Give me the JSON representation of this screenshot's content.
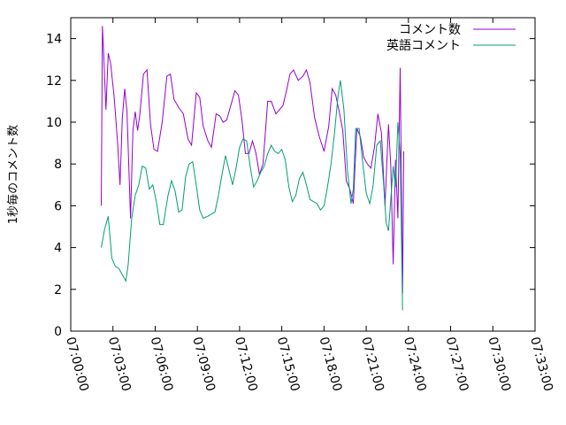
{
  "chart_data": {
    "type": "line",
    "ylabel": "1秒毎のコメント数",
    "xlabel": "",
    "title": "",
    "xlim": [
      "07:00:00",
      "07:33:00"
    ],
    "ylim": [
      0,
      15
    ],
    "x_ticks": [
      "07:00:00",
      "07:03:00",
      "07:06:00",
      "07:09:00",
      "07:12:00",
      "07:15:00",
      "07:18:00",
      "07:21:00",
      "07:24:00",
      "07:27:00",
      "07:30:00",
      "07:33:00"
    ],
    "y_ticks": [
      0,
      2,
      4,
      6,
      8,
      10,
      12,
      14
    ],
    "legend_position": "top-right",
    "grid": false,
    "series": [
      {
        "name": "コメント数",
        "color": "#9400d3",
        "points": [
          [
            "07:02:10",
            6.0
          ],
          [
            "07:02:15",
            14.6
          ],
          [
            "07:02:20",
            13.4
          ],
          [
            "07:02:30",
            10.6
          ],
          [
            "07:02:40",
            13.3
          ],
          [
            "07:02:50",
            12.8
          ],
          [
            "07:03:05",
            11.2
          ],
          [
            "07:03:20",
            9.0
          ],
          [
            "07:03:30",
            7.0
          ],
          [
            "07:03:40",
            10.2
          ],
          [
            "07:03:50",
            11.6
          ],
          [
            "07:04:00",
            10.5
          ],
          [
            "07:04:15",
            5.4
          ],
          [
            "07:04:25",
            9.6
          ],
          [
            "07:04:35",
            10.5
          ],
          [
            "07:04:45",
            9.6
          ],
          [
            "07:04:55",
            10.4
          ],
          [
            "07:05:10",
            12.3
          ],
          [
            "07:05:25",
            12.5
          ],
          [
            "07:05:40",
            9.9
          ],
          [
            "07:05:55",
            8.7
          ],
          [
            "07:06:10",
            8.6
          ],
          [
            "07:06:30",
            10.0
          ],
          [
            "07:06:50",
            12.2
          ],
          [
            "07:07:05",
            12.3
          ],
          [
            "07:07:20",
            11.1
          ],
          [
            "07:07:40",
            10.7
          ],
          [
            "07:08:00",
            10.4
          ],
          [
            "07:08:20",
            9.2
          ],
          [
            "07:08:35",
            8.9
          ],
          [
            "07:08:55",
            11.4
          ],
          [
            "07:09:10",
            11.2
          ],
          [
            "07:09:25",
            9.8
          ],
          [
            "07:09:45",
            9.1
          ],
          [
            "07:10:00",
            8.8
          ],
          [
            "07:10:20",
            10.4
          ],
          [
            "07:10:35",
            10.3
          ],
          [
            "07:10:50",
            10.0
          ],
          [
            "07:11:05",
            10.1
          ],
          [
            "07:11:20",
            10.7
          ],
          [
            "07:11:40",
            11.5
          ],
          [
            "07:11:55",
            11.3
          ],
          [
            "07:12:10",
            10.1
          ],
          [
            "07:12:25",
            8.5
          ],
          [
            "07:12:40",
            8.5
          ],
          [
            "07:12:55",
            9.1
          ],
          [
            "07:13:10",
            8.5
          ],
          [
            "07:13:25",
            7.5
          ],
          [
            "07:13:40",
            8.0
          ],
          [
            "07:14:00",
            11.0
          ],
          [
            "07:14:15",
            11.0
          ],
          [
            "07:14:35",
            10.4
          ],
          [
            "07:14:50",
            10.6
          ],
          [
            "07:15:05",
            10.8
          ],
          [
            "07:15:20",
            11.5
          ],
          [
            "07:15:35",
            12.3
          ],
          [
            "07:15:50",
            12.5
          ],
          [
            "07:16:10",
            12.0
          ],
          [
            "07:16:30",
            12.2
          ],
          [
            "07:16:45",
            12.5
          ],
          [
            "07:17:00",
            11.9
          ],
          [
            "07:17:20",
            10.2
          ],
          [
            "07:17:40",
            9.3
          ],
          [
            "07:18:00",
            8.6
          ],
          [
            "07:18:20",
            9.8
          ],
          [
            "07:18:35",
            11.6
          ],
          [
            "07:18:50",
            11.3
          ],
          [
            "07:19:05",
            10.5
          ],
          [
            "07:19:20",
            9.6
          ],
          [
            "07:19:35",
            7.2
          ],
          [
            "07:19:50",
            6.8
          ],
          [
            "07:20:05",
            6.1
          ],
          [
            "07:20:20",
            9.7
          ],
          [
            "07:20:35",
            9.3
          ],
          [
            "07:20:50",
            8.3
          ],
          [
            "07:21:05",
            8.0
          ],
          [
            "07:21:20",
            7.8
          ],
          [
            "07:21:35",
            8.8
          ],
          [
            "07:21:50",
            10.4
          ],
          [
            "07:22:05",
            9.5
          ],
          [
            "07:22:20",
            6.0
          ],
          [
            "07:22:35",
            9.9
          ],
          [
            "07:22:45",
            7.9
          ],
          [
            "07:22:55",
            3.2
          ],
          [
            "07:23:05",
            8.2
          ],
          [
            "07:23:15",
            5.4
          ],
          [
            "07:23:25",
            12.6
          ],
          [
            "07:23:35",
            1.8
          ],
          [
            "07:23:40",
            8.6
          ]
        ]
      },
      {
        "name": "英語コメント",
        "color": "#009e73",
        "points": [
          [
            "07:02:10",
            4.0
          ],
          [
            "07:02:25",
            4.9
          ],
          [
            "07:02:40",
            5.5
          ],
          [
            "07:02:55",
            3.5
          ],
          [
            "07:03:10",
            3.1
          ],
          [
            "07:03:25",
            3.0
          ],
          [
            "07:03:40",
            2.7
          ],
          [
            "07:03:55",
            2.4
          ],
          [
            "07:04:05",
            3.2
          ],
          [
            "07:04:20",
            5.4
          ],
          [
            "07:04:35",
            6.5
          ],
          [
            "07:04:50",
            7.0
          ],
          [
            "07:05:05",
            7.9
          ],
          [
            "07:05:20",
            7.8
          ],
          [
            "07:05:35",
            6.8
          ],
          [
            "07:05:50",
            7.0
          ],
          [
            "07:06:05",
            6.2
          ],
          [
            "07:06:20",
            5.1
          ],
          [
            "07:06:35",
            5.1
          ],
          [
            "07:06:55",
            6.5
          ],
          [
            "07:07:10",
            7.2
          ],
          [
            "07:07:25",
            6.7
          ],
          [
            "07:07:40",
            5.7
          ],
          [
            "07:07:55",
            5.8
          ],
          [
            "07:08:10",
            7.4
          ],
          [
            "07:08:25",
            8.0
          ],
          [
            "07:08:40",
            8.1
          ],
          [
            "07:08:55",
            7.0
          ],
          [
            "07:09:10",
            5.8
          ],
          [
            "07:09:25",
            5.4
          ],
          [
            "07:09:45",
            5.5
          ],
          [
            "07:10:00",
            5.6
          ],
          [
            "07:10:15",
            5.7
          ],
          [
            "07:10:30",
            6.5
          ],
          [
            "07:10:45",
            7.5
          ],
          [
            "07:11:00",
            8.4
          ],
          [
            "07:11:15",
            7.7
          ],
          [
            "07:11:30",
            7.0
          ],
          [
            "07:11:45",
            7.8
          ],
          [
            "07:12:00",
            8.8
          ],
          [
            "07:12:15",
            9.2
          ],
          [
            "07:12:30",
            9.1
          ],
          [
            "07:12:45",
            7.9
          ],
          [
            "07:13:00",
            6.9
          ],
          [
            "07:13:15",
            7.2
          ],
          [
            "07:13:30",
            7.6
          ],
          [
            "07:13:45",
            7.9
          ],
          [
            "07:14:00",
            8.5
          ],
          [
            "07:14:15",
            8.9
          ],
          [
            "07:14:30",
            8.6
          ],
          [
            "07:14:45",
            8.5
          ],
          [
            "07:15:00",
            8.7
          ],
          [
            "07:15:15",
            8.2
          ],
          [
            "07:15:30",
            6.9
          ],
          [
            "07:15:45",
            6.2
          ],
          [
            "07:16:00",
            6.5
          ],
          [
            "07:16:15",
            7.3
          ],
          [
            "07:16:30",
            7.6
          ],
          [
            "07:16:45",
            7.0
          ],
          [
            "07:17:00",
            6.3
          ],
          [
            "07:17:15",
            6.2
          ],
          [
            "07:17:30",
            6.1
          ],
          [
            "07:17:45",
            5.8
          ],
          [
            "07:18:00",
            6.0
          ],
          [
            "07:18:15",
            6.9
          ],
          [
            "07:18:30",
            8.0
          ],
          [
            "07:18:45",
            9.5
          ],
          [
            "07:19:00",
            11.3
          ],
          [
            "07:19:10",
            12.0
          ],
          [
            "07:19:25",
            10.6
          ],
          [
            "07:19:40",
            7.7
          ],
          [
            "07:19:55",
            6.1
          ],
          [
            "07:20:05",
            6.8
          ],
          [
            "07:20:15",
            9.7
          ],
          [
            "07:20:30",
            9.7
          ],
          [
            "07:20:45",
            8.1
          ],
          [
            "07:21:00",
            6.6
          ],
          [
            "07:21:15",
            6.1
          ],
          [
            "07:21:30",
            7.0
          ],
          [
            "07:21:45",
            8.9
          ],
          [
            "07:22:00",
            9.1
          ],
          [
            "07:22:15",
            6.9
          ],
          [
            "07:22:25",
            5.2
          ],
          [
            "07:22:35",
            4.8
          ],
          [
            "07:22:45",
            6.3
          ],
          [
            "07:22:55",
            7.9
          ],
          [
            "07:23:05",
            6.9
          ],
          [
            "07:23:15",
            10.0
          ],
          [
            "07:23:25",
            8.5
          ],
          [
            "07:23:35",
            1.0
          ]
        ]
      }
    ]
  }
}
